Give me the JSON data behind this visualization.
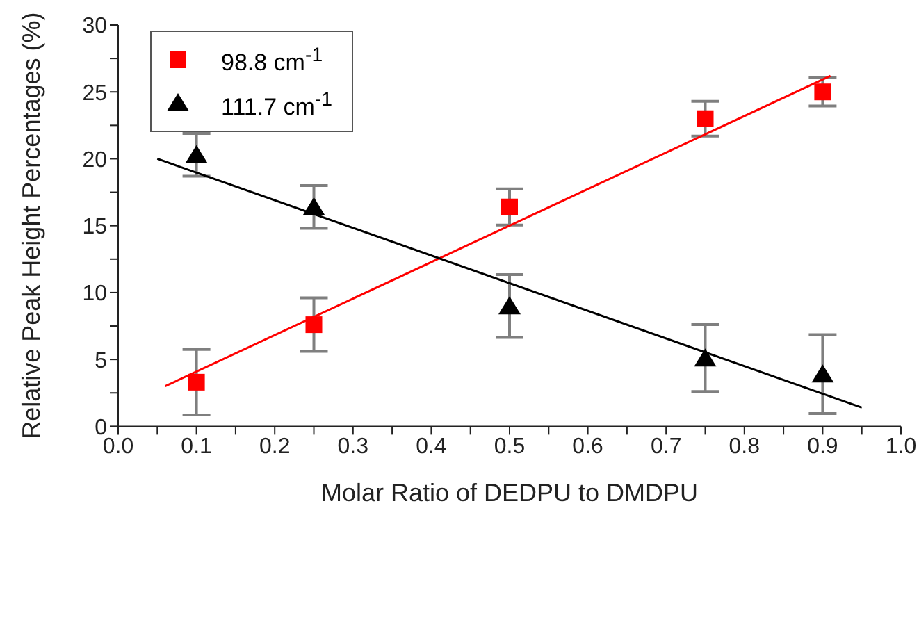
{
  "chart_data": {
    "type": "scatter",
    "xlabel": "Molar Ratio of DEDPU to DMDPU",
    "ylabel": "Relative Peak Height Percentages (%)",
    "xlim": [
      0,
      1
    ],
    "xticks": [
      {
        "value": 0,
        "label": "0.0"
      },
      {
        "value": 0.05,
        "label": null
      },
      0.1,
      {
        "value": 0.15,
        "label": null
      },
      0.2,
      {
        "value": 0.25,
        "label": null
      },
      0.3,
      {
        "value": 0.35,
        "label": null
      },
      0.4,
      {
        "value": 0.45,
        "label": null
      },
      0.5,
      {
        "value": 0.55,
        "label": null
      },
      0.6,
      {
        "value": 0.65,
        "label": null
      },
      0.7,
      {
        "value": 0.75,
        "label": null
      },
      0.8,
      {
        "value": 0.85,
        "label": null
      },
      0.9,
      {
        "value": 0.95,
        "label": null
      },
      {
        "value": 1,
        "label": "1.0"
      }
    ],
    "ylim": [
      0,
      30
    ],
    "yticks": [
      0,
      {
        "value": 2.5,
        "label": null
      },
      5,
      {
        "value": 7.5,
        "label": null
      },
      10,
      {
        "value": 12.5,
        "label": null
      },
      15,
      {
        "value": 17.5,
        "label": null
      },
      20,
      {
        "value": 22.5,
        "label": null
      },
      25,
      {
        "value": 27.5,
        "label": null
      },
      30
    ],
    "legend": "top left",
    "grid": false,
    "series": [
      {
        "name": "98.8 cm$^{-1}$",
        "marker": "square",
        "color": "#ff0000",
        "x": [
          0.1,
          0.25,
          0.5,
          0.75,
          0.9
        ],
        "values": [
          3.3,
          7.6,
          16.4,
          23.0,
          25.0
        ],
        "errors": [
          2.45,
          2.0,
          1.35,
          1.3,
          1.05
        ]
      },
      {
        "name": "111.7 cm$^{-1}$",
        "marker": "triangle",
        "color": "#000000",
        "x": [
          0.1,
          0.25,
          0.5,
          0.75,
          0.9
        ],
        "values": [
          20.3,
          16.4,
          9.0,
          5.1,
          3.9
        ],
        "errors": [
          1.6,
          1.6,
          2.35,
          2.5,
          2.95
        ]
      },
      {
        "type": "line",
        "marker": "none",
        "color": "#ff0000",
        "x": [
          0.06,
          0.91
        ],
        "values": [
          3.0,
          26.2
        ]
      },
      {
        "type": "line",
        "marker": "none",
        "color": "#000000",
        "x": [
          0.05,
          0.95
        ],
        "values": [
          20.0,
          1.4
        ]
      }
    ]
  }
}
